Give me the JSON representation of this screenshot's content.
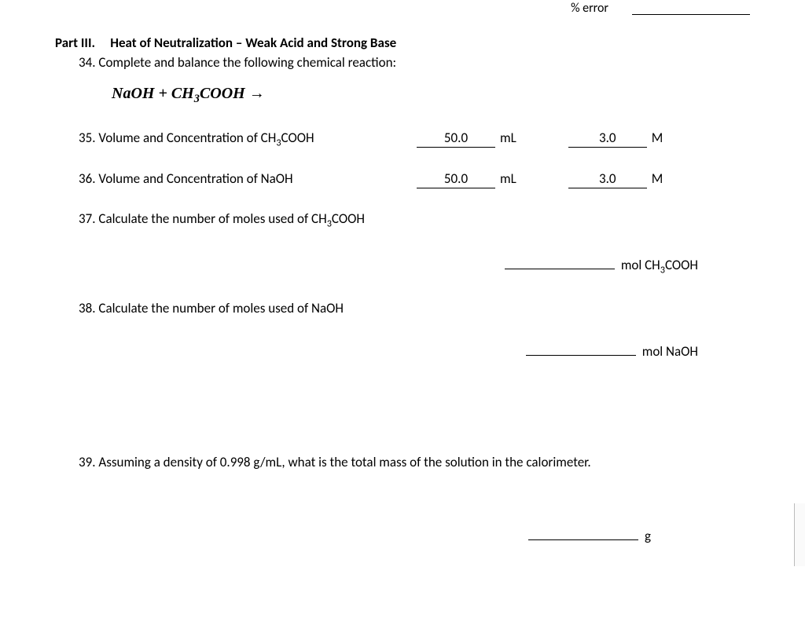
{
  "topCut": {
    "label": "% error"
  },
  "partHeader": {
    "partLabel": "Part III.",
    "title": "Heat of Neutralization – Weak Acid and Strong Base"
  },
  "q34": {
    "number": "34.",
    "text": "Complete and balance the following chemical reaction:"
  },
  "equation": "NaOH + CH₃COOH →",
  "q35": {
    "number": "35.",
    "text": "Volume and Concentration of CH",
    "sub": "3",
    "suffix": "COOH",
    "val1": "50.0",
    "unit1": "mL",
    "val2": "3.0",
    "unit2": "M"
  },
  "q36": {
    "number": "36.",
    "text": "Volume and Concentration of NaOH",
    "val1": "50.0",
    "unit1": "mL",
    "val2": "3.0",
    "unit2": "M"
  },
  "q37": {
    "number": "37.",
    "text": "Calculate the number of moles used of CH",
    "sub": "3",
    "suffix": "COOH",
    "ansUnitPre": "mol CH",
    "ansUnitSub": "3",
    "ansUnitSuf": "COOH"
  },
  "q38": {
    "number": "38.",
    "text": "Calculate the number of moles used of NaOH",
    "ansUnit": "mol NaOH"
  },
  "q39": {
    "number": "39.",
    "text": "Assuming a density of 0.998 g/mL, what is the total mass of the solution in the calorimeter.",
    "ansUnit": "g"
  }
}
